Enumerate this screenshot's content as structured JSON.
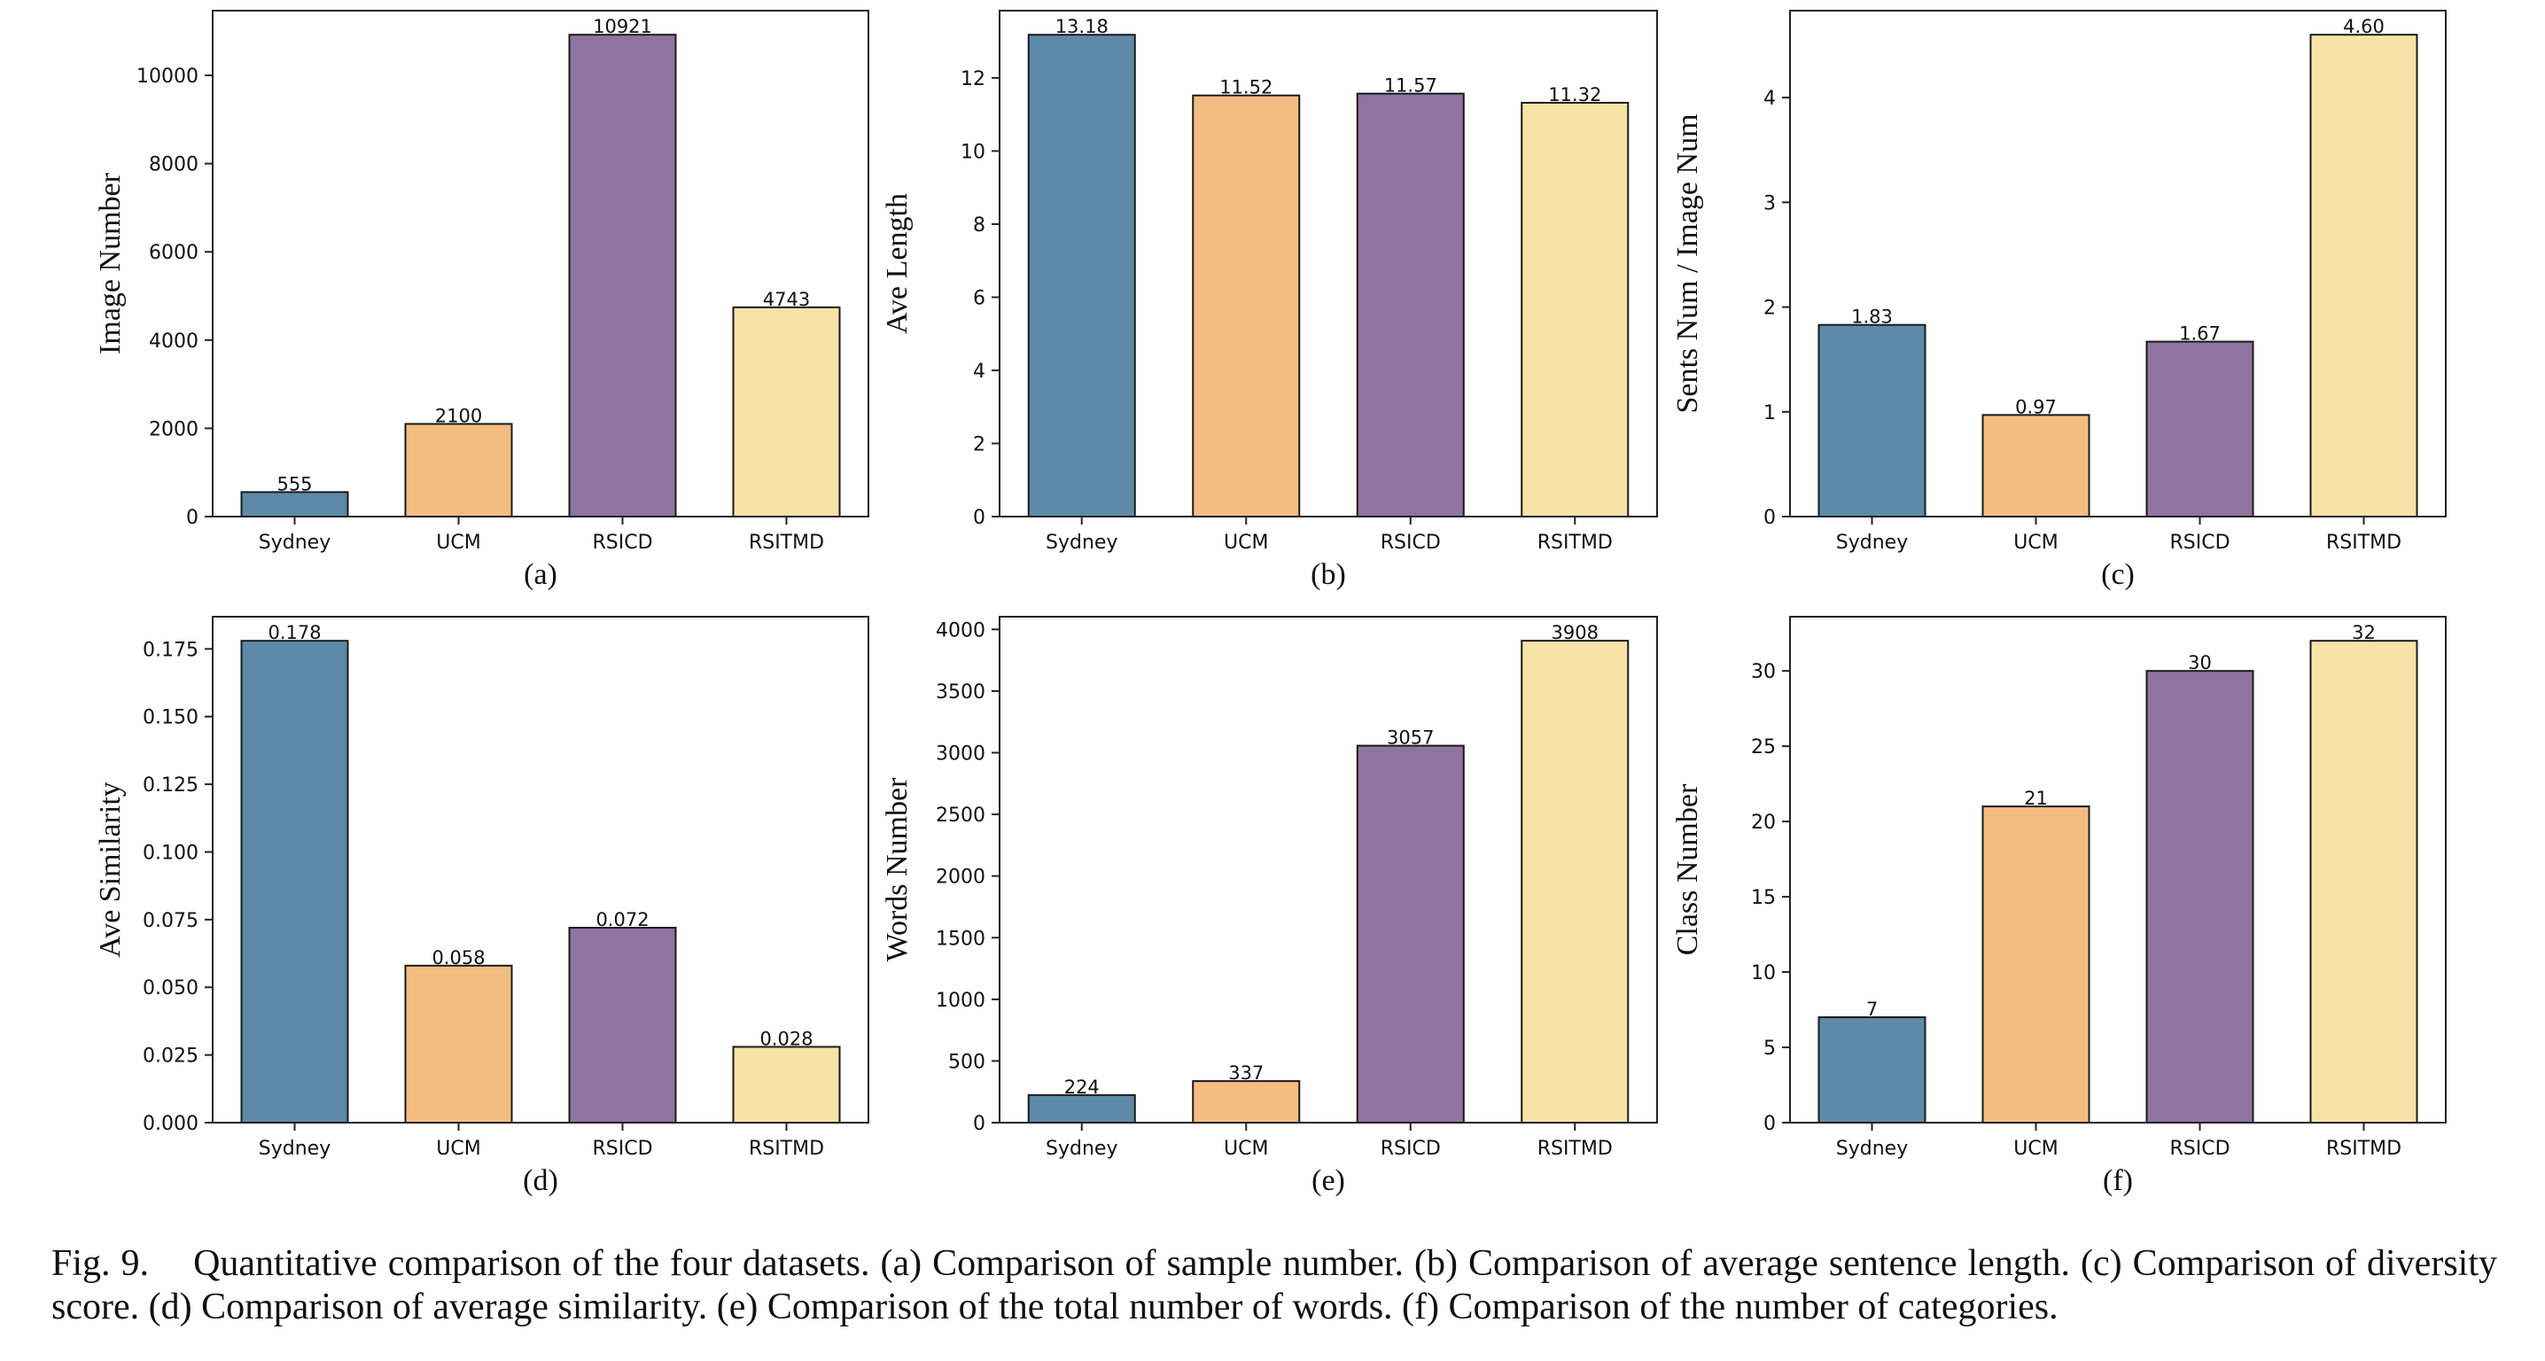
{
  "caption": {
    "label": "Fig. 9.",
    "text": "Quantitative comparison of the four datasets. (a) Comparison of sample number. (b) Comparison of average sentence length. (c) Comparison of diversity score. (d) Comparison of average similarity. (e) Comparison of the total number of words. (f) Comparison of the number of categories."
  },
  "colors": {
    "Sydney": "#5d8aa8",
    "UCM": "#f3bd82",
    "RSICD": "#8f73a0",
    "RSITMD": "#f7e3a7"
  },
  "chart_data": [
    {
      "type": "bar",
      "panel": "(a)",
      "categories": [
        "Sydney",
        "UCM",
        "RSICD",
        "RSITMD"
      ],
      "values": [
        555,
        2100,
        10921,
        4743
      ],
      "labels": [
        "555",
        "2100",
        "10921",
        "4743"
      ],
      "ylabel": "Image Number",
      "ylim": [
        0,
        11467
      ],
      "yticks": [
        0,
        2000,
        4000,
        6000,
        8000,
        10000
      ],
      "ytick_labels": [
        "0",
        "2000",
        "4000",
        "6000",
        "8000",
        "10000"
      ],
      "grid": false
    },
    {
      "type": "bar",
      "panel": "(b)",
      "categories": [
        "Sydney",
        "UCM",
        "RSICD",
        "RSITMD"
      ],
      "values": [
        13.18,
        11.52,
        11.57,
        11.32
      ],
      "labels": [
        "13.18",
        "11.52",
        "11.57",
        "11.32"
      ],
      "ylabel": "Ave Length",
      "ylim": [
        0,
        13.84
      ],
      "yticks": [
        0,
        2,
        4,
        6,
        8,
        10,
        12
      ],
      "ytick_labels": [
        "0",
        "2",
        "4",
        "6",
        "8",
        "10",
        "12"
      ],
      "grid": false
    },
    {
      "type": "bar",
      "panel": "(c)",
      "categories": [
        "Sydney",
        "UCM",
        "RSICD",
        "RSITMD"
      ],
      "values": [
        1.83,
        0.97,
        1.67,
        4.6
      ],
      "labels": [
        "1.83",
        "0.97",
        "1.67",
        "4.60"
      ],
      "ylabel": "Sents Num / Image Num",
      "ylim": [
        0,
        4.83
      ],
      "yticks": [
        0,
        1,
        2,
        3,
        4
      ],
      "ytick_labels": [
        "0",
        "1",
        "2",
        "3",
        "4"
      ],
      "grid": false
    },
    {
      "type": "bar",
      "panel": "(d)",
      "categories": [
        "Sydney",
        "UCM",
        "RSICD",
        "RSITMD"
      ],
      "values": [
        0.178,
        0.058,
        0.072,
        0.028
      ],
      "labels": [
        "0.178",
        "0.058",
        "0.072",
        "0.028"
      ],
      "ylabel": "Ave Similarity",
      "ylim": [
        0,
        0.1869
      ],
      "yticks": [
        0,
        0.025,
        0.05,
        0.075,
        0.1,
        0.125,
        0.15,
        0.175
      ],
      "ytick_labels": [
        "0.000",
        "0.025",
        "0.050",
        "0.075",
        "0.100",
        "0.125",
        "0.150",
        "0.175"
      ],
      "grid": false
    },
    {
      "type": "bar",
      "panel": "(e)",
      "categories": [
        "Sydney",
        "UCM",
        "RSICD",
        "RSITMD"
      ],
      "values": [
        224,
        337,
        3057,
        3908
      ],
      "labels": [
        "224",
        "337",
        "3057",
        "3908"
      ],
      "ylabel": "Words Number",
      "ylim": [
        0,
        4103
      ],
      "yticks": [
        0,
        500,
        1000,
        1500,
        2000,
        2500,
        3000,
        3500,
        4000
      ],
      "ytick_labels": [
        "0",
        "500",
        "1000",
        "1500",
        "2000",
        "2500",
        "3000",
        "3500",
        "4000"
      ],
      "grid": false
    },
    {
      "type": "bar",
      "panel": "(f)",
      "categories": [
        "Sydney",
        "UCM",
        "RSICD",
        "RSITMD"
      ],
      "values": [
        7,
        21,
        30,
        32
      ],
      "labels": [
        "7",
        "21",
        "30",
        "32"
      ],
      "ylabel": "Class Number",
      "ylim": [
        0,
        33.6
      ],
      "yticks": [
        0,
        5,
        10,
        15,
        20,
        25,
        30
      ],
      "ytick_labels": [
        "0",
        "5",
        "10",
        "15",
        "20",
        "25",
        "30"
      ],
      "grid": false
    }
  ]
}
